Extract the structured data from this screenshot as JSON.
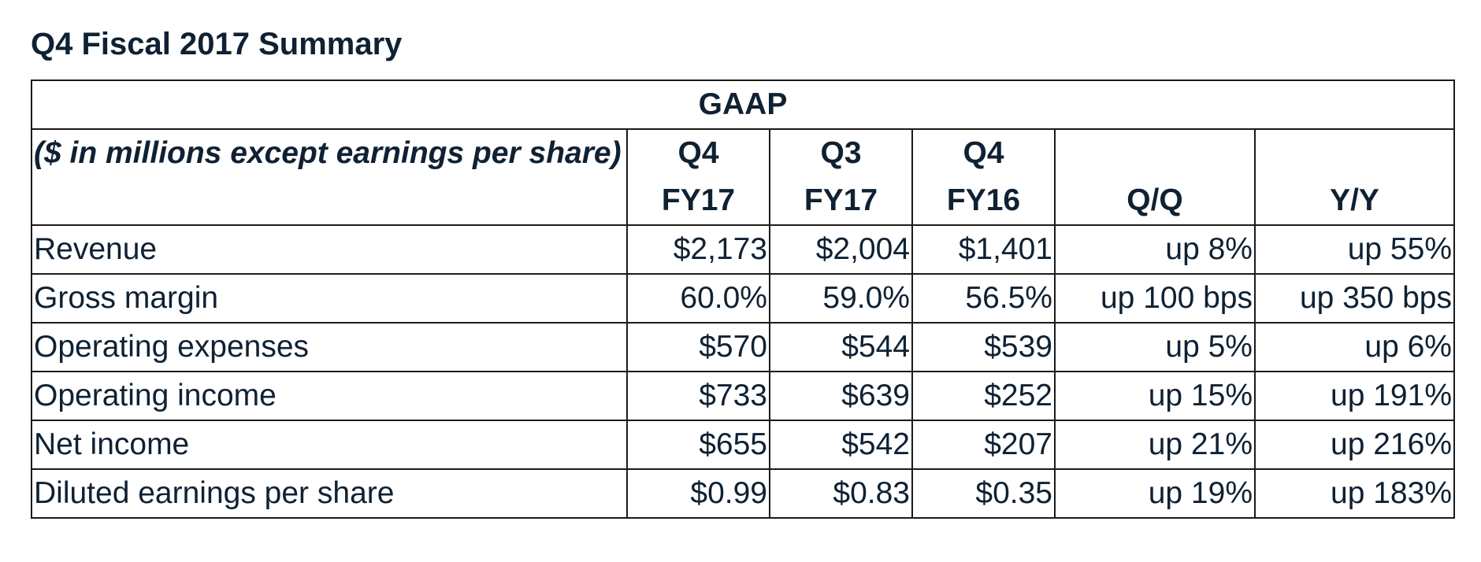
{
  "title": "Q4 Fiscal 2017 Summary",
  "table": {
    "group_header": "GAAP",
    "unit_label": "($ in millions except earnings per share)",
    "columns": [
      {
        "line1": "Q4",
        "line2": "FY17"
      },
      {
        "line1": "Q3",
        "line2": "FY17"
      },
      {
        "line1": "Q4",
        "line2": "FY16"
      },
      {
        "line1": "",
        "line2": "Q/Q"
      },
      {
        "line1": "",
        "line2": "Y/Y"
      }
    ],
    "rows": [
      {
        "label": "Revenue",
        "values": [
          "$2,173",
          "$2,004",
          "$1,401",
          "up 8%",
          "up 55%"
        ]
      },
      {
        "label": "Gross margin",
        "values": [
          "60.0%",
          "59.0%",
          "56.5%",
          "up 100 bps",
          "up 350 bps"
        ]
      },
      {
        "label": "Operating expenses",
        "values": [
          "$570",
          "$544",
          "$539",
          "up 5%",
          "up 6%"
        ]
      },
      {
        "label": "Operating income",
        "values": [
          "$733",
          "$639",
          "$252",
          "up 15%",
          "up 191%"
        ]
      },
      {
        "label": "Net income",
        "values": [
          "$655",
          "$542",
          "$207",
          "up 21%",
          "up 216%"
        ]
      },
      {
        "label": "Diluted earnings per share",
        "values": [
          "$0.99",
          "$0.83",
          "$0.35",
          "up 19%",
          "up 183%"
        ]
      }
    ]
  }
}
